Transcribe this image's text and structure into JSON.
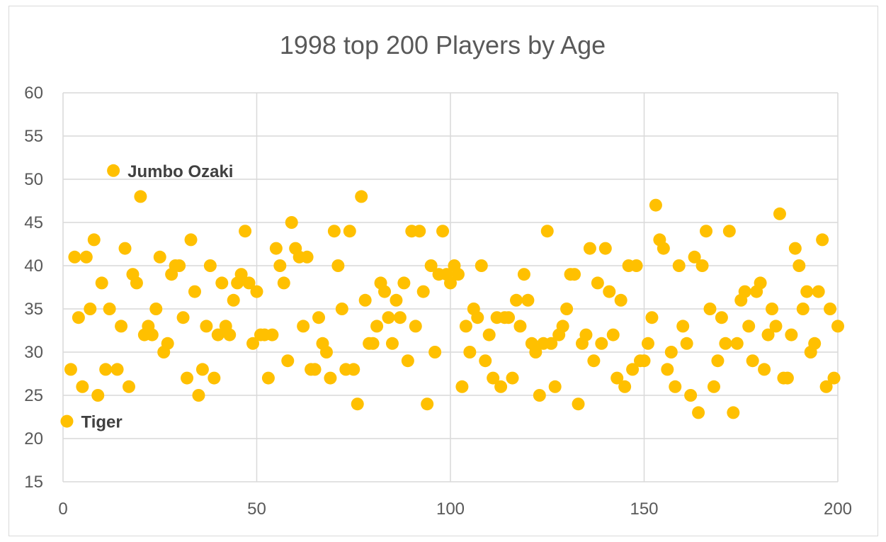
{
  "chart_data": {
    "type": "scatter",
    "title": "1998 top 200 Players by Age",
    "xlabel": "",
    "ylabel": "",
    "xlim": [
      0,
      200
    ],
    "ylim": [
      15,
      60
    ],
    "x_ticks": [
      0,
      50,
      100,
      150,
      200
    ],
    "y_ticks": [
      15,
      20,
      25,
      30,
      35,
      40,
      45,
      50,
      55,
      60
    ],
    "grid": true,
    "marker_color": "#ffc000",
    "series": [
      {
        "name": "Age",
        "points": [
          [
            1,
            22
          ],
          [
            2,
            28
          ],
          [
            3,
            41
          ],
          [
            4,
            34
          ],
          [
            5,
            26
          ],
          [
            6,
            41
          ],
          [
            7,
            35
          ],
          [
            8,
            43
          ],
          [
            9,
            25
          ],
          [
            10,
            38
          ],
          [
            11,
            28
          ],
          [
            12,
            35
          ],
          [
            13,
            51
          ],
          [
            14,
            28
          ],
          [
            15,
            33
          ],
          [
            16,
            42
          ],
          [
            17,
            26
          ],
          [
            18,
            39
          ],
          [
            19,
            38
          ],
          [
            20,
            48
          ],
          [
            21,
            32
          ],
          [
            22,
            33
          ],
          [
            23,
            32
          ],
          [
            24,
            35
          ],
          [
            25,
            41
          ],
          [
            26,
            30
          ],
          [
            27,
            31
          ],
          [
            28,
            39
          ],
          [
            29,
            40
          ],
          [
            30,
            40
          ],
          [
            31,
            34
          ],
          [
            32,
            27
          ],
          [
            33,
            43
          ],
          [
            34,
            37
          ],
          [
            35,
            25
          ],
          [
            36,
            28
          ],
          [
            37,
            33
          ],
          [
            38,
            40
          ],
          [
            39,
            27
          ],
          [
            40,
            32
          ],
          [
            41,
            38
          ],
          [
            42,
            33
          ],
          [
            43,
            32
          ],
          [
            44,
            36
          ],
          [
            45,
            38
          ],
          [
            46,
            39
          ],
          [
            47,
            44
          ],
          [
            48,
            38
          ],
          [
            49,
            31
          ],
          [
            50,
            37
          ],
          [
            51,
            32
          ],
          [
            52,
            32
          ],
          [
            53,
            27
          ],
          [
            54,
            32
          ],
          [
            55,
            42
          ],
          [
            56,
            40
          ],
          [
            57,
            38
          ],
          [
            58,
            29
          ],
          [
            59,
            45
          ],
          [
            60,
            42
          ],
          [
            61,
            41
          ],
          [
            62,
            33
          ],
          [
            63,
            41
          ],
          [
            64,
            28
          ],
          [
            65,
            28
          ],
          [
            66,
            34
          ],
          [
            67,
            31
          ],
          [
            68,
            30
          ],
          [
            69,
            27
          ],
          [
            70,
            44
          ],
          [
            71,
            40
          ],
          [
            72,
            35
          ],
          [
            73,
            28
          ],
          [
            74,
            44
          ],
          [
            75,
            28
          ],
          [
            76,
            24
          ],
          [
            77,
            48
          ],
          [
            78,
            36
          ],
          [
            79,
            31
          ],
          [
            80,
            31
          ],
          [
            81,
            33
          ],
          [
            82,
            38
          ],
          [
            83,
            37
          ],
          [
            84,
            34
          ],
          [
            85,
            31
          ],
          [
            86,
            36
          ],
          [
            87,
            34
          ],
          [
            88,
            38
          ],
          [
            89,
            29
          ],
          [
            90,
            44
          ],
          [
            91,
            33
          ],
          [
            92,
            44
          ],
          [
            93,
            37
          ],
          [
            94,
            24
          ],
          [
            95,
            40
          ],
          [
            96,
            30
          ],
          [
            97,
            39
          ],
          [
            98,
            44
          ],
          [
            99,
            39
          ],
          [
            100,
            38
          ],
          [
            101,
            40
          ],
          [
            102,
            39
          ],
          [
            103,
            26
          ],
          [
            104,
            33
          ],
          [
            105,
            30
          ],
          [
            106,
            35
          ],
          [
            107,
            34
          ],
          [
            108,
            40
          ],
          [
            109,
            29
          ],
          [
            110,
            32
          ],
          [
            111,
            27
          ],
          [
            112,
            34
          ],
          [
            113,
            26
          ],
          [
            114,
            34
          ],
          [
            115,
            34
          ],
          [
            116,
            27
          ],
          [
            117,
            36
          ],
          [
            118,
            33
          ],
          [
            119,
            39
          ],
          [
            120,
            36
          ],
          [
            121,
            31
          ],
          [
            122,
            30
          ],
          [
            123,
            25
          ],
          [
            124,
            31
          ],
          [
            125,
            44
          ],
          [
            126,
            31
          ],
          [
            127,
            26
          ],
          [
            128,
            32
          ],
          [
            129,
            33
          ],
          [
            130,
            35
          ],
          [
            131,
            39
          ],
          [
            132,
            39
          ],
          [
            133,
            24
          ],
          [
            134,
            31
          ],
          [
            135,
            32
          ],
          [
            136,
            42
          ],
          [
            137,
            29
          ],
          [
            138,
            38
          ],
          [
            139,
            31
          ],
          [
            140,
            42
          ],
          [
            141,
            37
          ],
          [
            142,
            32
          ],
          [
            143,
            27
          ],
          [
            144,
            36
          ],
          [
            145,
            26
          ],
          [
            146,
            40
          ],
          [
            147,
            28
          ],
          [
            148,
            40
          ],
          [
            149,
            29
          ],
          [
            150,
            29
          ],
          [
            151,
            31
          ],
          [
            152,
            34
          ],
          [
            153,
            47
          ],
          [
            154,
            43
          ],
          [
            155,
            42
          ],
          [
            156,
            28
          ],
          [
            157,
            30
          ],
          [
            158,
            26
          ],
          [
            159,
            40
          ],
          [
            160,
            33
          ],
          [
            161,
            31
          ],
          [
            162,
            25
          ],
          [
            163,
            41
          ],
          [
            164,
            23
          ],
          [
            165,
            40
          ],
          [
            166,
            44
          ],
          [
            167,
            35
          ],
          [
            168,
            26
          ],
          [
            169,
            29
          ],
          [
            170,
            34
          ],
          [
            171,
            31
          ],
          [
            172,
            44
          ],
          [
            173,
            23
          ],
          [
            174,
            31
          ],
          [
            175,
            36
          ],
          [
            176,
            37
          ],
          [
            177,
            33
          ],
          [
            178,
            29
          ],
          [
            179,
            37
          ],
          [
            180,
            38
          ],
          [
            181,
            28
          ],
          [
            182,
            32
          ],
          [
            183,
            35
          ],
          [
            184,
            33
          ],
          [
            185,
            46
          ],
          [
            186,
            27
          ],
          [
            187,
            27
          ],
          [
            188,
            32
          ],
          [
            189,
            42
          ],
          [
            190,
            40
          ],
          [
            191,
            35
          ],
          [
            192,
            37
          ],
          [
            193,
            30
          ],
          [
            194,
            31
          ],
          [
            195,
            37
          ],
          [
            196,
            43
          ],
          [
            197,
            26
          ],
          [
            198,
            35
          ],
          [
            199,
            27
          ],
          [
            200,
            33
          ]
        ]
      }
    ],
    "annotations": [
      {
        "text": "Jumbo Ozaki",
        "x": 13,
        "y": 51
      },
      {
        "text": "Tiger",
        "x": 1,
        "y": 22
      }
    ]
  }
}
